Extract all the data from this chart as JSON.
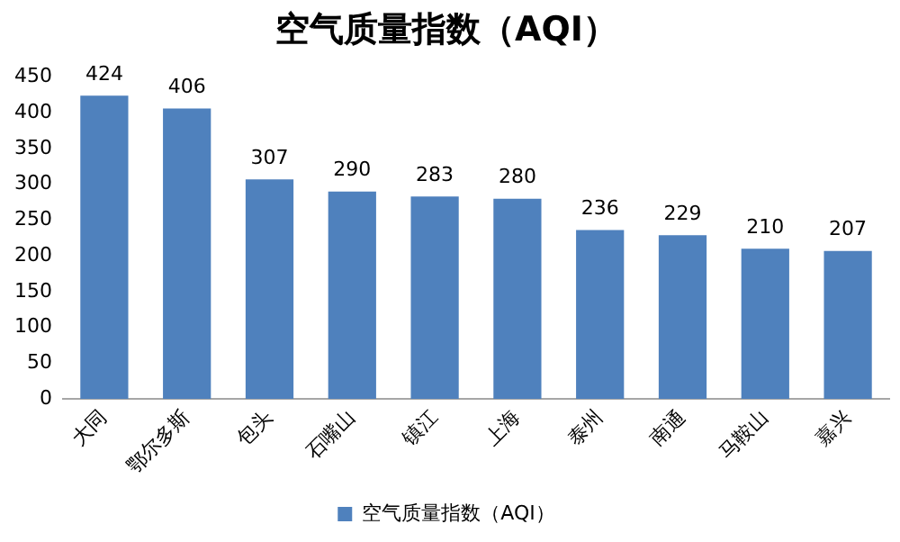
{
  "chart_data": {
    "type": "bar",
    "title": "空气质量指数（AQI）",
    "categories": [
      "大同",
      "鄂尔多斯",
      "包头",
      "石嘴山",
      "镇江",
      "上海",
      "泰州",
      "南通",
      "马鞍山",
      "嘉兴"
    ],
    "series": [
      {
        "name": "空气质量指数（AQI）",
        "color": "#4f81bd",
        "values": [
          424,
          406,
          307,
          290,
          283,
          280,
          236,
          229,
          210,
          207
        ]
      }
    ],
    "ylim": [
      0,
      450
    ],
    "yticks": [
      0,
      50,
      100,
      150,
      200,
      250,
      300,
      350,
      400,
      450
    ],
    "grid": false,
    "legend": "bottom",
    "data_labels": true
  }
}
